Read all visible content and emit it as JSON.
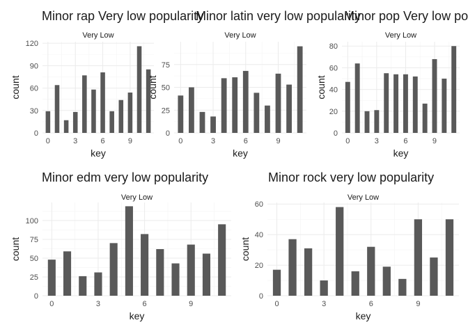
{
  "chart_data": [
    {
      "type": "bar",
      "title": "Minor rap Very low popularity",
      "facet": "Very Low",
      "xlabel": "key",
      "ylabel": "count",
      "x": [
        0,
        1,
        2,
        3,
        4,
        5,
        6,
        7,
        8,
        9,
        10,
        11
      ],
      "values": [
        29,
        64,
        17,
        28,
        77,
        58,
        81,
        29,
        44,
        54,
        116,
        85
      ],
      "xlim": [
        -0.6,
        11.6
      ],
      "ylim": [
        0,
        122
      ],
      "xticks": [
        0,
        3,
        6,
        9
      ],
      "yticks": [
        0,
        30,
        60,
        90,
        120
      ],
      "bar_color": "#595959"
    },
    {
      "type": "bar",
      "title": "Minor latin very low popularity",
      "facet": "Very Low",
      "xlabel": "key",
      "ylabel": "count",
      "x": [
        0,
        1,
        2,
        3,
        4,
        5,
        6,
        7,
        8,
        9,
        10,
        11
      ],
      "values": [
        41,
        50,
        23,
        18,
        60,
        61,
        68,
        44,
        30,
        65,
        53,
        95
      ],
      "xlim": [
        -0.6,
        11.6
      ],
      "ylim": [
        0,
        100
      ],
      "xticks": [
        0,
        3,
        6,
        9
      ],
      "yticks": [
        0,
        25,
        50,
        75
      ],
      "bar_color": "#595959"
    },
    {
      "type": "bar",
      "title": "Minor pop Very low popularity",
      "facet": "Very Low",
      "xlabel": "key",
      "ylabel": "count",
      "x": [
        0,
        1,
        2,
        3,
        4,
        5,
        6,
        7,
        8,
        9,
        10,
        11
      ],
      "values": [
        47,
        64,
        20,
        21,
        55,
        54,
        54,
        52,
        27,
        68,
        50,
        80
      ],
      "xlim": [
        -0.6,
        11.6
      ],
      "ylim": [
        0,
        84
      ],
      "xticks": [
        0,
        3,
        6,
        9
      ],
      "yticks": [
        0,
        20,
        40,
        60,
        80
      ],
      "bar_color": "#595959"
    },
    {
      "type": "bar",
      "title": "Minor edm very low popularity",
      "facet": "Very Low",
      "xlabel": "key",
      "ylabel": "count",
      "x": [
        0,
        1,
        2,
        3,
        4,
        5,
        6,
        7,
        8,
        9,
        10,
        11
      ],
      "values": [
        48,
        59,
        26,
        31,
        70,
        119,
        82,
        62,
        43,
        68,
        56,
        95
      ],
      "xlim": [
        -0.6,
        11.6
      ],
      "ylim": [
        0,
        124
      ],
      "xticks": [
        0,
        3,
        6,
        9
      ],
      "yticks": [
        0,
        25,
        50,
        75,
        100
      ],
      "bar_color": "#595959"
    },
    {
      "type": "bar",
      "title": "Minor rock very low popularity",
      "facet": "Very Low",
      "xlabel": "key",
      "ylabel": "count",
      "x": [
        0,
        1,
        2,
        3,
        4,
        5,
        6,
        7,
        8,
        9,
        10,
        11
      ],
      "values": [
        17,
        37,
        31,
        10,
        58,
        16,
        32,
        19,
        11,
        50,
        25,
        50
      ],
      "xlim": [
        -0.6,
        11.6
      ],
      "ylim": [
        0,
        61
      ],
      "xticks": [
        0,
        3,
        6,
        9
      ],
      "yticks": [
        0,
        20,
        40,
        60
      ],
      "bar_color": "#595959"
    }
  ]
}
